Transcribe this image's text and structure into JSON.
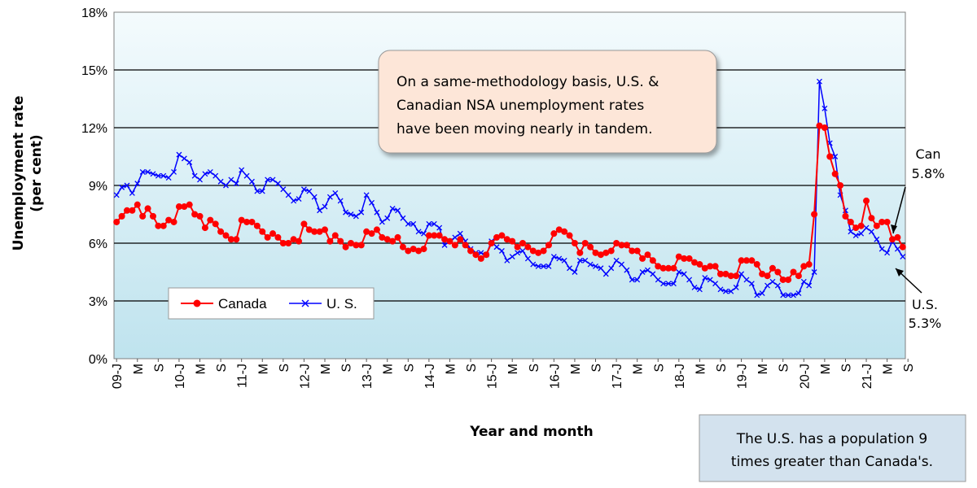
{
  "chart_data": {
    "type": "line",
    "title": "",
    "xlabel": "Year and month",
    "ylabel_line1": "Unemployment rate",
    "ylabel_line2": "(per cent)",
    "ylim": [
      0,
      18
    ],
    "y_ticks": [
      "0%",
      "3%",
      "6%",
      "9%",
      "12%",
      "15%",
      "18%"
    ],
    "y_tick_values": [
      0,
      3,
      6,
      9,
      12,
      15,
      18
    ],
    "x_tick_labels": [
      "09-J",
      "M",
      "S",
      "10-J",
      "M",
      "S",
      "11-J",
      "M",
      "S",
      "12-J",
      "M",
      "S",
      "13-J",
      "M",
      "S",
      "14-J",
      "M",
      "S",
      "15-J",
      "M",
      "S",
      "16-J",
      "M",
      "S",
      "17-J",
      "M",
      "S",
      "18-J",
      "M",
      "S",
      "19-J",
      "M",
      "S",
      "20-J",
      "M",
      "S",
      "21-J",
      "M",
      "S"
    ],
    "start_period": "2009-01",
    "end_period": "2021-09",
    "grid": "horizontal",
    "legend": "bottom-left",
    "series": [
      {
        "name": "Canada",
        "color": "#ff0000",
        "marker": "circle",
        "values": [
          7.1,
          7.4,
          7.7,
          7.7,
          8.0,
          7.4,
          7.8,
          7.4,
          6.9,
          6.9,
          7.2,
          7.1,
          7.9,
          7.9,
          8.0,
          7.5,
          7.4,
          6.8,
          7.2,
          7.0,
          6.6,
          6.4,
          6.2,
          6.2,
          7.2,
          7.1,
          7.1,
          6.9,
          6.6,
          6.3,
          6.5,
          6.3,
          6.0,
          6.0,
          6.2,
          6.1,
          7.0,
          6.7,
          6.6,
          6.6,
          6.7,
          6.1,
          6.4,
          6.1,
          5.8,
          6.0,
          5.9,
          5.9,
          6.6,
          6.5,
          6.7,
          6.3,
          6.2,
          6.1,
          6.3,
          5.8,
          5.6,
          5.7,
          5.6,
          5.7,
          6.4,
          6.4,
          6.4,
          6.2,
          6.1,
          5.9,
          6.2,
          5.9,
          5.6,
          5.4,
          5.2,
          5.4,
          6.0,
          6.3,
          6.4,
          6.2,
          6.1,
          5.8,
          6.0,
          5.8,
          5.6,
          5.5,
          5.6,
          5.9,
          6.5,
          6.7,
          6.6,
          6.4,
          6.0,
          5.5,
          6.0,
          5.8,
          5.5,
          5.4,
          5.5,
          5.6,
          6.0,
          5.9,
          5.9,
          5.6,
          5.6,
          5.2,
          5.4,
          5.1,
          4.8,
          4.7,
          4.7,
          4.7,
          5.3,
          5.2,
          5.2,
          5.0,
          4.9,
          4.7,
          4.8,
          4.8,
          4.4,
          4.4,
          4.3,
          4.3,
          5.1,
          5.1,
          5.1,
          4.9,
          4.4,
          4.3,
          4.7,
          4.5,
          4.1,
          4.1,
          4.5,
          4.3,
          4.8,
          4.9,
          7.5,
          12.1,
          12.0,
          10.5,
          9.6,
          9.0,
          7.4,
          7.1,
          6.8,
          6.9,
          8.2,
          7.3,
          6.9,
          7.1,
          7.1,
          6.2,
          6.3,
          5.8
        ],
        "end_label_line1": "Can",
        "end_label_line2": "5.8%"
      },
      {
        "name": "U. S.",
        "color": "#0000ff",
        "marker": "x",
        "values": [
          8.5,
          8.9,
          9.0,
          8.6,
          9.1,
          9.7,
          9.7,
          9.6,
          9.5,
          9.5,
          9.4,
          9.7,
          10.6,
          10.4,
          10.2,
          9.5,
          9.3,
          9.6,
          9.7,
          9.5,
          9.2,
          9.0,
          9.3,
          9.1,
          9.8,
          9.5,
          9.2,
          8.7,
          8.7,
          9.3,
          9.3,
          9.1,
          8.8,
          8.5,
          8.2,
          8.3,
          8.8,
          8.7,
          8.4,
          7.7,
          7.9,
          8.4,
          8.6,
          8.2,
          7.6,
          7.5,
          7.4,
          7.6,
          8.5,
          8.1,
          7.6,
          7.1,
          7.3,
          7.8,
          7.7,
          7.3,
          7.0,
          7.0,
          6.6,
          6.5,
          7.0,
          7.0,
          6.8,
          5.9,
          6.1,
          6.3,
          6.5,
          6.1,
          5.7,
          5.5,
          5.5,
          5.4,
          6.1,
          5.8,
          5.6,
          5.1,
          5.3,
          5.5,
          5.6,
          5.2,
          4.9,
          4.8,
          4.8,
          4.8,
          5.3,
          5.2,
          5.1,
          4.7,
          4.5,
          5.1,
          5.1,
          4.9,
          4.8,
          4.7,
          4.4,
          4.7,
          5.1,
          4.9,
          4.6,
          4.1,
          4.1,
          4.5,
          4.6,
          4.4,
          4.1,
          3.9,
          3.9,
          3.9,
          4.5,
          4.4,
          4.1,
          3.7,
          3.6,
          4.2,
          4.1,
          3.9,
          3.6,
          3.5,
          3.5,
          3.7,
          4.4,
          4.1,
          3.9,
          3.3,
          3.4,
          3.8,
          4.0,
          3.8,
          3.3,
          3.3,
          3.3,
          3.4,
          4.0,
          3.8,
          4.5,
          14.4,
          13.0,
          11.2,
          10.5,
          8.5,
          7.7,
          6.6,
          6.4,
          6.5,
          6.8,
          6.6,
          6.2,
          5.7,
          5.5,
          6.1,
          5.7,
          5.3
        ],
        "end_label_line1": "U.S.",
        "end_label_line2": "5.3%"
      }
    ],
    "annotation_box": {
      "lines": [
        "On a same-methodology basis, U.S. &",
        "Canadian NSA unemployment rates",
        "have been moving nearly in tandem."
      ]
    },
    "footnote_box": {
      "lines": [
        "The U.S. has a population 9",
        "times greater than Canada's."
      ]
    },
    "colors": {
      "plot_background_top": "#f4fbfd",
      "plot_background_bottom": "#bfe3ee",
      "annotation_fill": "#fde6d8",
      "footnote_fill": "#d3e2ee"
    }
  }
}
